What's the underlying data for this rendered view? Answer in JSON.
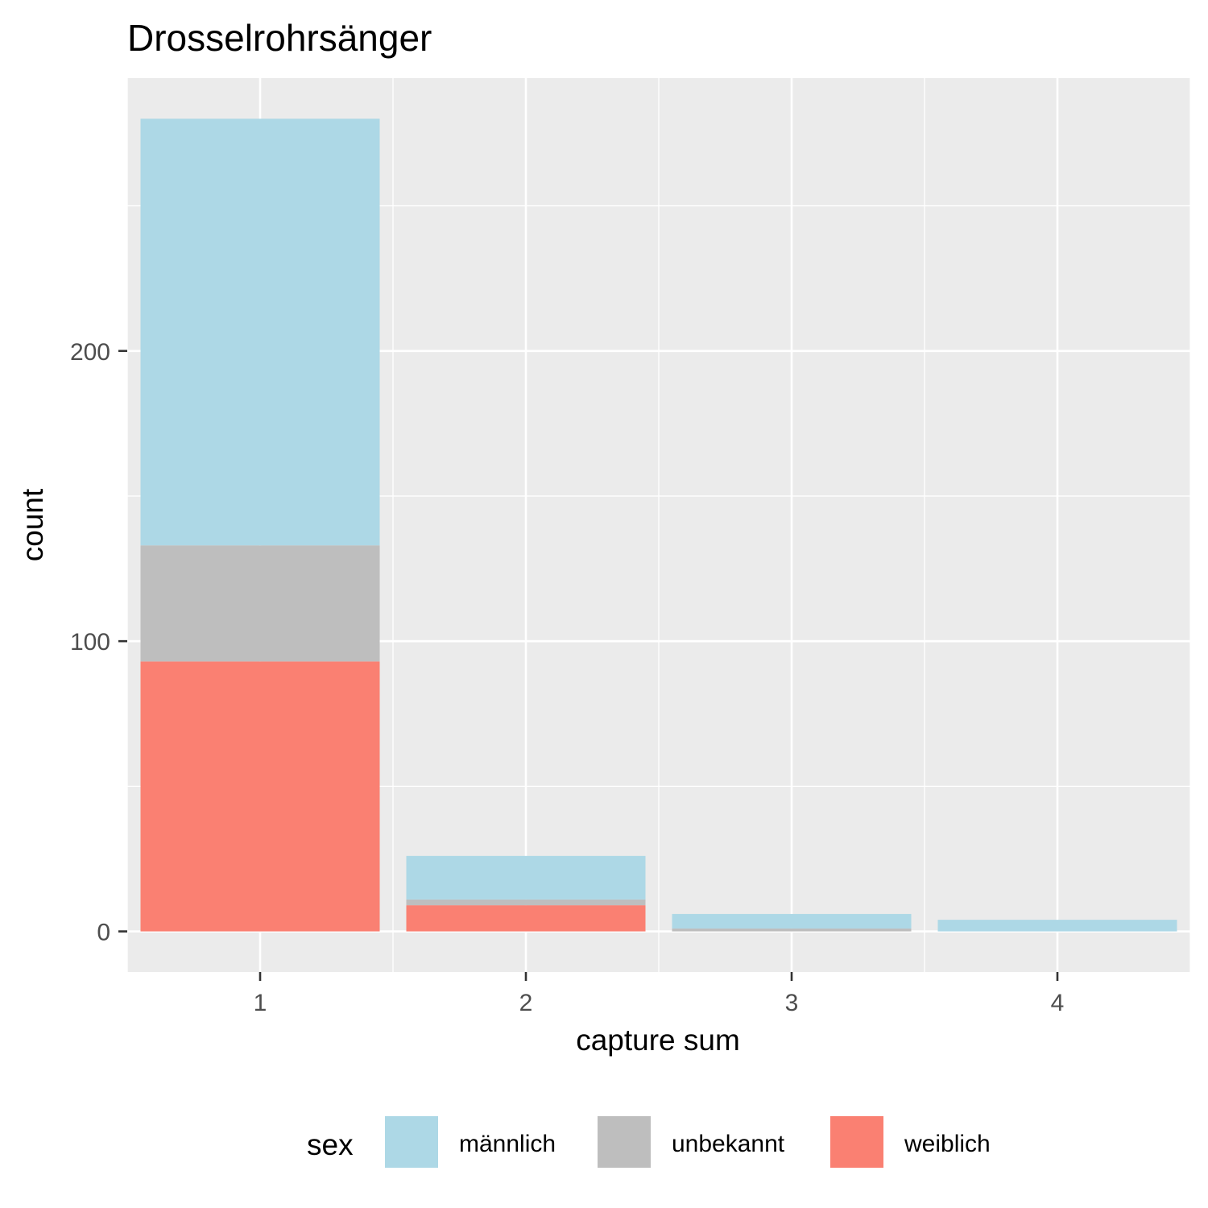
{
  "chart_data": {
    "type": "bar",
    "stacked": true,
    "title": "Drosselrohrsänger",
    "xlabel": "capture sum",
    "ylabel": "count",
    "categories": [
      "1",
      "2",
      "3",
      "4"
    ],
    "series": [
      {
        "name": "weiblich",
        "color": "#FA8072",
        "values": [
          93,
          9,
          0,
          0
        ]
      },
      {
        "name": "unbekannt",
        "color": "#BEBEBE",
        "values": [
          40,
          2,
          1,
          0
        ]
      },
      {
        "name": "männlich",
        "color": "#ADD8E6",
        "values": [
          147,
          15,
          5,
          4
        ]
      }
    ],
    "yticks": [
      0,
      100,
      200
    ],
    "ylim": [
      -14,
      294
    ],
    "xlim": [
      0.5,
      4.5
    ],
    "grid": true,
    "legend": {
      "title": "sex",
      "position": "bottom",
      "entries": [
        {
          "label": "männlich",
          "color": "#ADD8E6"
        },
        {
          "label": "unbekannt",
          "color": "#BEBEBE"
        },
        {
          "label": "weiblich",
          "color": "#FA8072"
        }
      ]
    }
  }
}
